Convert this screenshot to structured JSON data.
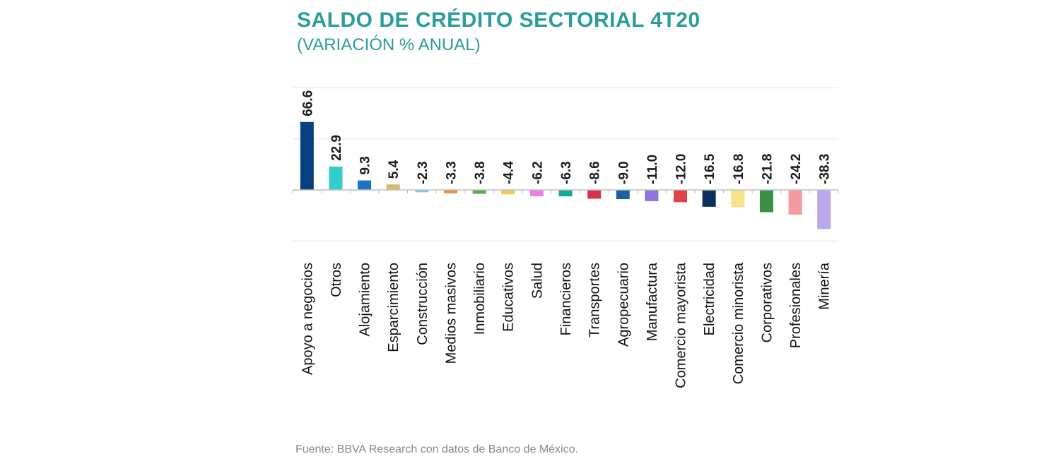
{
  "header": {
    "title": "SALDO DE CRÉDITO SECTORIAL 4T20",
    "subtitle": "(VARIACIÓN  % ANUAL)"
  },
  "footer": {
    "source": "Fuente: BBVA Research con datos de Banco de México."
  },
  "chart_data": {
    "type": "bar",
    "title": "SALDO DE CRÉDITO SECTORIAL 4T20",
    "subtitle": "(VARIACIÓN  % ANUAL)",
    "xlabel": "",
    "ylabel": "",
    "ylim": [
      -50,
      100
    ],
    "grid": true,
    "categories": [
      "Apoyo a negocios",
      "Otros",
      "Alojamiento",
      "Esparcimiento",
      "Construcción",
      "Medios masivos",
      "Inmobiliario",
      "Educativos",
      "Salud",
      "Financieros",
      "Transportes",
      "Agropecuario",
      "Manufactura",
      "Comercio mayorista",
      "Electricidad",
      "Comercio minorista",
      "Corporativos",
      "Profesionales",
      "Minería"
    ],
    "values": [
      66.6,
      22.9,
      9.3,
      5.4,
      -2.3,
      -3.3,
      -3.8,
      -4.4,
      -6.2,
      -6.3,
      -8.6,
      -9.0,
      -11.0,
      -12.0,
      -16.5,
      -16.8,
      -21.8,
      -24.2,
      -38.3
    ],
    "value_labels": [
      "66.6",
      "22.9",
      "9.3",
      "5.4",
      "-2.3",
      "-3.3",
      "-3.8",
      "-4.4",
      "-6.2",
      "-6.3",
      "-8.6",
      "-9.0",
      "-11.0",
      "-12.0",
      "-16.5",
      "-16.8",
      "-21.8",
      "-24.2",
      "-38.3"
    ],
    "colors": [
      "#073f7f",
      "#33cccc",
      "#1b73c4",
      "#d9b870",
      "#7fc8f0",
      "#f08c3c",
      "#4caf50",
      "#f4c95d",
      "#f07ce6",
      "#14a89b",
      "#d9324a",
      "#1d5fa0",
      "#8f73d8",
      "#e0424a",
      "#0c2f5f",
      "#fbe08a",
      "#3a8f47",
      "#f59a9a",
      "#b8a8ec"
    ]
  }
}
